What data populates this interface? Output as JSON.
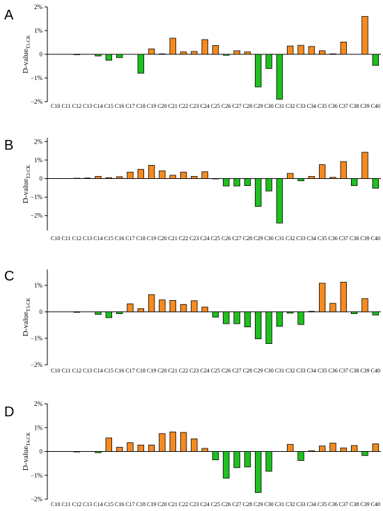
{
  "chart_data": [
    {
      "type": "bar",
      "panel_label": "A",
      "ylabel": "D-value",
      "ylabel_subscript": "T1-CK",
      "ylim": [
        -2,
        2
      ],
      "ytick_labels": [
        "2%",
        "1%",
        "0",
        "−1%",
        "−2%"
      ],
      "categories": [
        "C10",
        "C11",
        "C12",
        "C13",
        "C14",
        "C15",
        "C16",
        "C17",
        "C18",
        "C19",
        "C20",
        "C21",
        "C22",
        "C23",
        "C24",
        "C25",
        "C26",
        "C27",
        "C28",
        "C29",
        "C30",
        "C31",
        "C32",
        "C33",
        "C34",
        "C35",
        "C36",
        "C37",
        "C38",
        "C39",
        "C40"
      ],
      "values": [
        0,
        0,
        -0.02,
        0,
        -0.07,
        -0.25,
        -0.14,
        0,
        -0.8,
        0.23,
        0.02,
        0.68,
        0.1,
        0.12,
        0.62,
        0.37,
        -0.04,
        0.15,
        0.1,
        -1.38,
        -0.6,
        -1.9,
        0.35,
        0.38,
        0.33,
        0.15,
        0.02,
        0.52,
        0,
        1.6,
        -0.47
      ]
    },
    {
      "type": "bar",
      "panel_label": "B",
      "ylabel": "D-value",
      "ylabel_subscript": "T2-CK",
      "ylim": [
        -2.8,
        2.2
      ],
      "ytick_labels": [
        "2%",
        "1%",
        "0",
        "−1%",
        "−2%"
      ],
      "categories": [
        "C10",
        "C11",
        "C12",
        "C13",
        "C14",
        "C15",
        "C16",
        "C17",
        "C18",
        "C19",
        "C20",
        "C21",
        "C22",
        "C23",
        "C24",
        "C25",
        "C26",
        "C27",
        "C28",
        "C29",
        "C30",
        "C31",
        "C32",
        "C33",
        "C34",
        "C35",
        "C36",
        "C37",
        "C38",
        "C39",
        "C40"
      ],
      "values": [
        0,
        0,
        0.02,
        0.03,
        0.12,
        0.05,
        0.1,
        0.35,
        0.5,
        0.72,
        0.42,
        0.18,
        0.35,
        0.12,
        0.37,
        -0.02,
        -0.4,
        -0.4,
        -0.38,
        -1.5,
        -0.67,
        -2.4,
        0.28,
        -0.12,
        0.12,
        0.75,
        0.07,
        0.92,
        -0.38,
        1.42,
        -0.52
      ]
    },
    {
      "type": "bar",
      "panel_label": "C",
      "ylabel": "D-value",
      "ylabel_subscript": "T3-CK",
      "ylim": [
        -2,
        1.6
      ],
      "ytick_labels": [
        "1%",
        "0",
        "−1%",
        "−2%"
      ],
      "categories": [
        "C10",
        "C11",
        "C12",
        "C13",
        "C14",
        "C15",
        "C16",
        "C17",
        "C18",
        "C19",
        "C20",
        "C21",
        "C22",
        "C23",
        "C24",
        "C25",
        "C26",
        "C27",
        "C28",
        "C29",
        "C30",
        "C31",
        "C32",
        "C33",
        "C34",
        "C35",
        "C36",
        "C37",
        "C38",
        "C39",
        "C40"
      ],
      "values": [
        0,
        0,
        -0.02,
        0,
        -0.1,
        -0.22,
        -0.07,
        0.3,
        0.12,
        0.65,
        0.45,
        0.43,
        0.28,
        0.42,
        0.18,
        -0.2,
        -0.45,
        -0.45,
        -0.57,
        -1.02,
        -1.2,
        -0.55,
        -0.05,
        -0.48,
        0.02,
        1.08,
        0.32,
        1.12,
        -0.07,
        0.5,
        -0.12
      ]
    },
    {
      "type": "bar",
      "panel_label": "D",
      "ylabel": "D-value",
      "ylabel_subscript": "T4-CK",
      "ylim": [
        -2,
        2
      ],
      "ytick_labels": [
        "2%",
        "1%",
        "0",
        "−1%",
        "−2%"
      ],
      "categories": [
        "C10",
        "C11",
        "C12",
        "C13",
        "C14",
        "C15",
        "C16",
        "C17",
        "C18",
        "C19",
        "C20",
        "C21",
        "C22",
        "C23",
        "C24",
        "C25",
        "C26",
        "C27",
        "C28",
        "C29",
        "C30",
        "C31",
        "C32",
        "C33",
        "C34",
        "C35",
        "C36",
        "C37",
        "C38",
        "C39",
        "C40"
      ],
      "values": [
        0,
        0,
        -0.02,
        0,
        -0.05,
        0.57,
        0.18,
        0.37,
        0.27,
        0.27,
        0.75,
        0.82,
        0.8,
        0.53,
        0.13,
        -0.35,
        -1.12,
        -0.68,
        -0.65,
        -1.72,
        -0.83,
        0,
        0.3,
        -0.38,
        0.03,
        0.23,
        0.35,
        0.15,
        0.25,
        -0.17,
        0.32
      ]
    }
  ],
  "colors": {
    "positive": "#f58a1f",
    "negative": "#1fbf1f",
    "axis": "#000000"
  }
}
